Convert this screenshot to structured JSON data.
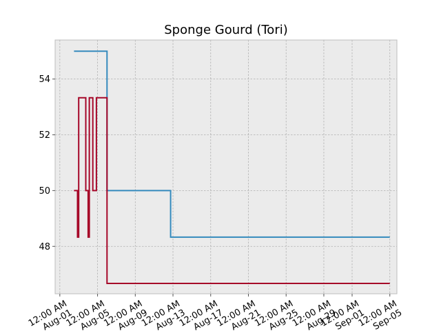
{
  "chart_data": {
    "type": "line",
    "step": "post",
    "title": "Sponge Gourd (Tori)",
    "xlabel": "",
    "ylabel": "",
    "x_type": "date",
    "xlim": [
      "2023-07-31T12:00",
      "2023-09-05T18:00"
    ],
    "ylim": [
      46.3,
      55.4
    ],
    "grid": true,
    "legend": "none",
    "background": "#ebebeb",
    "y_ticks": [
      {
        "value": 48,
        "label": "48"
      },
      {
        "value": 50,
        "label": "50"
      },
      {
        "value": 52,
        "label": "52"
      },
      {
        "value": 54,
        "label": "54"
      }
    ],
    "x_ticks": [
      {
        "value": "2023-08-01T00:00",
        "label": "12:00 AM\nAug-01"
      },
      {
        "value": "2023-08-05T00:00",
        "label": "12:00 AM\nAug-05"
      },
      {
        "value": "2023-08-09T00:00",
        "label": "12:00 AM\nAug-09"
      },
      {
        "value": "2023-08-13T00:00",
        "label": "12:00 AM\nAug-13"
      },
      {
        "value": "2023-08-17T00:00",
        "label": "12:00 AM\nAug-17"
      },
      {
        "value": "2023-08-21T00:00",
        "label": "12:00 AM\nAug-21"
      },
      {
        "value": "2023-08-25T00:00",
        "label": "12:00 AM\nAug-25"
      },
      {
        "value": "2023-08-29T00:00",
        "label": "12:00 AM\nAug-29"
      },
      {
        "value": "2023-09-01T00:00",
        "label": "12:00 AM\nSep-01"
      },
      {
        "value": "2023-09-05T00:00",
        "label": "12:00 AM\nSep-05"
      }
    ],
    "series": [
      {
        "color": "#348abd",
        "points": [
          {
            "x": "2023-08-02T12:00",
            "y": 55.0
          },
          {
            "x": "2023-08-06T00:00",
            "y": 50.0
          },
          {
            "x": "2023-08-12T18:00",
            "y": 48.33
          },
          {
            "x": "2023-09-05T00:00",
            "y": 48.33
          }
        ]
      },
      {
        "color": "#a60628",
        "points": [
          {
            "x": "2023-08-02T12:00",
            "y": 50.0
          },
          {
            "x": "2023-08-02T21:00",
            "y": 48.33
          },
          {
            "x": "2023-08-03T00:00",
            "y": 53.33
          },
          {
            "x": "2023-08-03T18:00",
            "y": 50.0
          },
          {
            "x": "2023-08-04T00:00",
            "y": 48.33
          },
          {
            "x": "2023-08-04T03:00",
            "y": 53.33
          },
          {
            "x": "2023-08-04T12:00",
            "y": 50.0
          },
          {
            "x": "2023-08-04T21:00",
            "y": 53.33
          },
          {
            "x": "2023-08-06T00:00",
            "y": 46.67
          },
          {
            "x": "2023-09-05T00:00",
            "y": 46.67
          }
        ]
      }
    ]
  }
}
